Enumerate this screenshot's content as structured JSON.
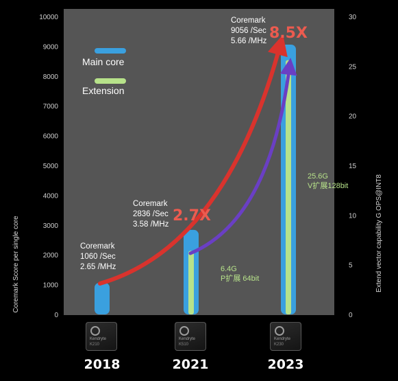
{
  "chart_data": {
    "type": "bar",
    "categories": [
      "2018",
      "2021",
      "2023"
    ],
    "ylabel_left": "Coremark Score per single core",
    "ylabel_right": "Extend vector capability G OPS@INT8",
    "ylim_left": [
      0,
      10000
    ],
    "ylim_right": [
      0,
      30
    ],
    "yticks_left": [
      "0",
      "1000",
      "2000",
      "3000",
      "4000",
      "5000",
      "6000",
      "7000",
      "8000",
      "9000",
      "10000"
    ],
    "yticks_right": [
      "0",
      "5",
      "10",
      "15",
      "20",
      "25",
      "30"
    ],
    "legend": {
      "position": "top-left",
      "main": "Main core",
      "ext": "Extension"
    },
    "series": [
      {
        "name": "Main core",
        "axis": "left",
        "color": "#3aa0df",
        "values": [
          1060,
          2836,
          9056
        ]
      },
      {
        "name": "Extension",
        "axis": "right",
        "color": "#b7e28a",
        "values": [
          0,
          6.4,
          25.6
        ]
      }
    ],
    "annotations": {
      "main": [
        [
          "Coremark",
          "1060 /Sec",
          "2.65 /MHz"
        ],
        [
          "Coremark",
          "2836 /Sec",
          "3.58 /MHz"
        ],
        [
          "Coremark",
          "9056 /Sec",
          "5.66 /MHz"
        ]
      ],
      "ext": [
        [
          "6.4G",
          "P扩展 64bit"
        ],
        [
          "25.6G",
          "V扩展128bit"
        ]
      ],
      "multipliers": [
        "2.7X",
        "8.5X"
      ]
    },
    "chips": [
      {
        "brand": "Kendryte",
        "model": "K210",
        "color": "#3f8a4e"
      },
      {
        "brand": "Kendryte",
        "model": "K510",
        "color": "#3d6fb2"
      },
      {
        "brand": "Kendryte",
        "model": "K230",
        "color": "#6b4aa6"
      }
    ],
    "colors": {
      "plot_bg": "#555555",
      "red_arrow": "#d9332d",
      "purple_arrow": "#6a3fc4",
      "multiplier": "#ec5b4f",
      "annotation": "#ffffff",
      "ext_text": "#b7e28a"
    }
  }
}
